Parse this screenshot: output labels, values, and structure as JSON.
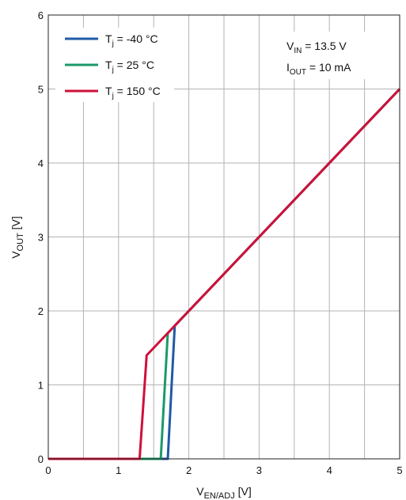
{
  "chart_data": {
    "type": "line",
    "xlabel": {
      "main": "V",
      "sub": "EN/ADJ",
      "unit": " [V]"
    },
    "ylabel": {
      "main": "V",
      "sub": "OUT",
      "unit": " [V]"
    },
    "xlim": [
      0,
      5
    ],
    "ylim": [
      0,
      6
    ],
    "x_ticks": [
      "0",
      "1",
      "2",
      "3",
      "4",
      "5"
    ],
    "y_ticks": [
      "0",
      "1",
      "2",
      "3",
      "4",
      "5",
      "6"
    ],
    "grid": true,
    "legend_position": "top-left",
    "conditions": [
      {
        "main": "V",
        "sub": "IN",
        "rest": " = 13.5 V"
      },
      {
        "main": "I",
        "sub": "OUT",
        "rest": " = 10 mA"
      }
    ],
    "series": [
      {
        "name_main": "T",
        "name_sub": "j",
        "name_rest": " = -40 °C",
        "color": "#1f5aa6",
        "x": [
          0,
          1.7,
          1.8,
          5
        ],
        "y": [
          0,
          0,
          1.8,
          5
        ]
      },
      {
        "name_main": "T",
        "name_sub": "j",
        "name_rest": " = 25 °C",
        "color": "#1a9a6a",
        "x": [
          0,
          1.6,
          1.7,
          5
        ],
        "y": [
          0,
          0,
          1.7,
          5
        ]
      },
      {
        "name_main": "T",
        "name_sub": "j",
        "name_rest": " = 150 °C",
        "color": "#d0103a",
        "x": [
          0,
          1.3,
          1.4,
          5
        ],
        "y": [
          0,
          0,
          1.4,
          5
        ]
      }
    ]
  }
}
